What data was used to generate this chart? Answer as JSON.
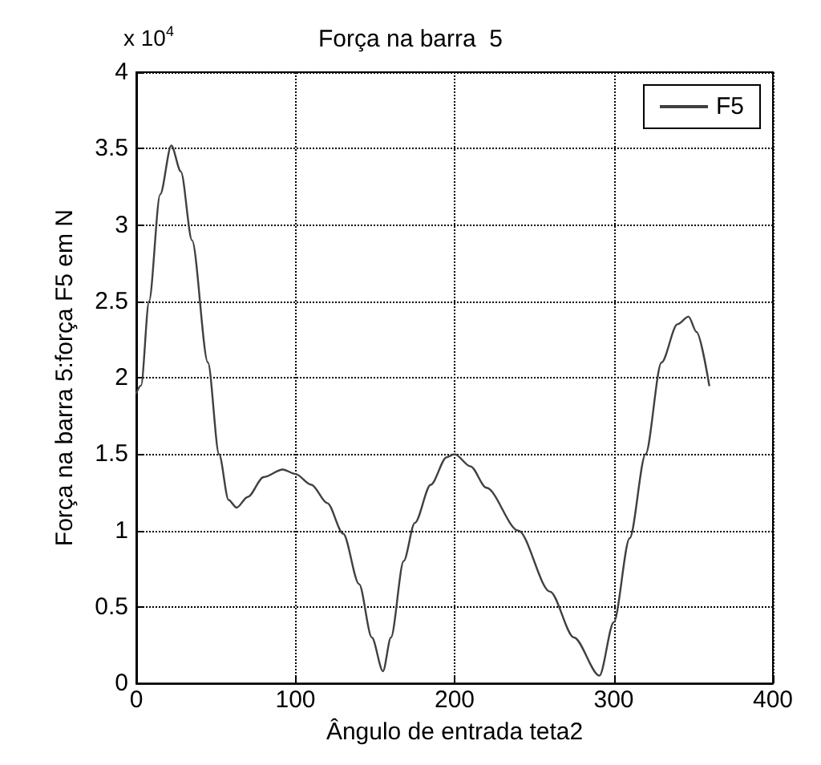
{
  "chart_data": {
    "type": "line",
    "title": "Força na barra  5",
    "xlabel": "Ângulo de entrada teta2",
    "ylabel": "Força na barra 5:força F5 em N",
    "annotations": [
      "x 10$^{4}$"
    ],
    "series": [
      {
        "name": "F5",
        "color": "#404040",
        "x": [
          0,
          3,
          8,
          15,
          22,
          28,
          35,
          45,
          52,
          58,
          63,
          70,
          80,
          92,
          100,
          110,
          120,
          130,
          140,
          148,
          155,
          160,
          168,
          175,
          185,
          195,
          200,
          210,
          220,
          240,
          260,
          275,
          291,
          300,
          310,
          320,
          330,
          340,
          347,
          352,
          360
        ],
        "values": [
          1.9,
          1.95,
          2.5,
          3.2,
          3.52,
          3.35,
          2.9,
          2.1,
          1.5,
          1.2,
          1.15,
          1.22,
          1.35,
          1.4,
          1.37,
          1.3,
          1.18,
          0.98,
          0.65,
          0.3,
          0.08,
          0.3,
          0.8,
          1.05,
          1.3,
          1.48,
          1.5,
          1.42,
          1.28,
          1.0,
          0.6,
          0.3,
          0.05,
          0.4,
          0.95,
          1.5,
          2.1,
          2.35,
          2.4,
          2.3,
          1.95
        ]
      }
    ],
    "xlim": [
      0,
      400
    ],
    "xticks": [
      0,
      100,
      200,
      300,
      400
    ],
    "ylim": [
      0,
      4
    ],
    "yticks": [
      0,
      0.5,
      1,
      1.5,
      2,
      2.5,
      3,
      3.5,
      4
    ],
    "grid": true,
    "legend": "top right",
    "marker": "none",
    "line_style": "solid"
  }
}
